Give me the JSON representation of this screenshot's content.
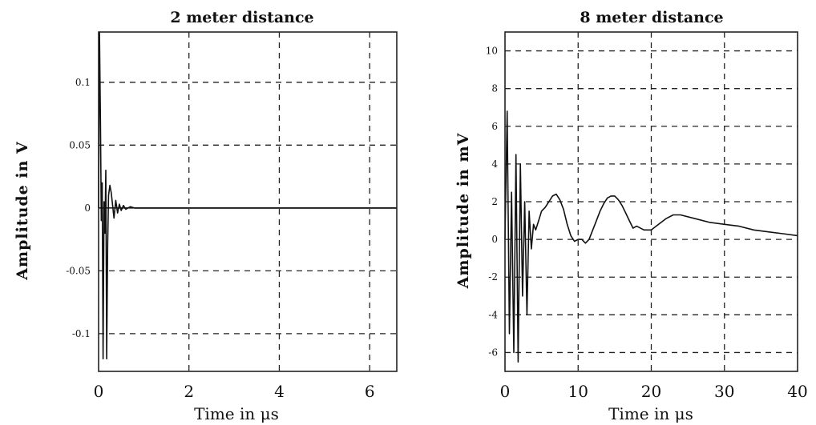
{
  "chart_data": [
    {
      "type": "line",
      "title": "2 meter distance",
      "xlabel": "Time in μs",
      "ylabel": "Amplitude in V",
      "xlim": [
        0,
        6.6
      ],
      "ylim": [
        -0.13,
        0.14
      ],
      "xticks": [
        0,
        2,
        4,
        6
      ],
      "xtick_labels": [
        "0",
        "2",
        "4",
        "6"
      ],
      "yticks": [
        0.1,
        0.05,
        0,
        -0.05,
        -0.1
      ],
      "ytick_labels": [
        "0.1",
        "0.05",
        "0",
        "-0.05",
        "-0.1"
      ],
      "grid": true,
      "series": [
        {
          "x": [
            0,
            0.02,
            0.04,
            0.06,
            0.08,
            0.1,
            0.12,
            0.14,
            0.16,
            0.18,
            0.2,
            0.22,
            0.25,
            0.28,
            0.31,
            0.34,
            0.38,
            0.42,
            0.46,
            0.5,
            0.55,
            0.6,
            0.7,
            0.8,
            1.0,
            1.5,
            2,
            3,
            4,
            5,
            6,
            6.6
          ],
          "y": [
            0,
            0.14,
            0.07,
            -0.01,
            0.02,
            -0.12,
            0.005,
            -0.02,
            0.03,
            -0.12,
            -0.03,
            0.01,
            0.018,
            0.012,
            0.002,
            -0.008,
            0.006,
            -0.004,
            0.003,
            -0.002,
            0.002,
            -0.001,
            0.001,
            0,
            0,
            0,
            0,
            0,
            0,
            0,
            0,
            0
          ]
        }
      ]
    },
    {
      "type": "line",
      "title": "8 meter distance",
      "xlabel": "Time in μs",
      "ylabel": "Amplitude in mV",
      "xlim": [
        0,
        40
      ],
      "ylim": [
        -7,
        11
      ],
      "xticks": [
        0,
        10,
        20,
        30,
        40
      ],
      "xtick_labels": [
        "0",
        "10",
        "20",
        "30",
        "40"
      ],
      "yticks": [
        10,
        8,
        6,
        4,
        2,
        0,
        -2,
        -4,
        -6
      ],
      "ytick_labels": [
        "10",
        "8",
        "6",
        "4",
        "2",
        "0",
        "-2",
        "-4",
        "-6"
      ],
      "grid": true,
      "series": [
        {
          "x": [
            0,
            0.3,
            0.6,
            0.9,
            1.2,
            1.5,
            1.8,
            2.1,
            2.4,
            2.7,
            3.0,
            3.3,
            3.6,
            3.9,
            4.2,
            4.6,
            5.0,
            5.5,
            6.0,
            6.5,
            7.0,
            7.5,
            8.0,
            8.5,
            9.0,
            9.5,
            10,
            10.5,
            11,
            11.5,
            12,
            12.5,
            13,
            13.5,
            14,
            14.5,
            15,
            15.5,
            16,
            16.5,
            17,
            17.5,
            18,
            19,
            20,
            21,
            22,
            23,
            24,
            26,
            28,
            30,
            32,
            34,
            36,
            38,
            40
          ],
          "y": [
            0,
            6.8,
            -5.0,
            2.5,
            -6.0,
            4.5,
            -6.5,
            4.0,
            -3.0,
            2.0,
            -4.0,
            1.5,
            -0.5,
            0.8,
            0.5,
            1.0,
            1.5,
            1.7,
            2.0,
            2.3,
            2.4,
            2.1,
            1.6,
            0.8,
            0.2,
            -0.1,
            0.0,
            0.0,
            -0.2,
            0.0,
            0.5,
            1.0,
            1.5,
            1.9,
            2.2,
            2.3,
            2.3,
            2.1,
            1.8,
            1.4,
            1.0,
            0.6,
            0.7,
            0.5,
            0.5,
            0.8,
            1.1,
            1.3,
            1.3,
            1.1,
            0.9,
            0.8,
            0.7,
            0.5,
            0.4,
            0.3,
            0.2
          ]
        }
      ]
    }
  ]
}
